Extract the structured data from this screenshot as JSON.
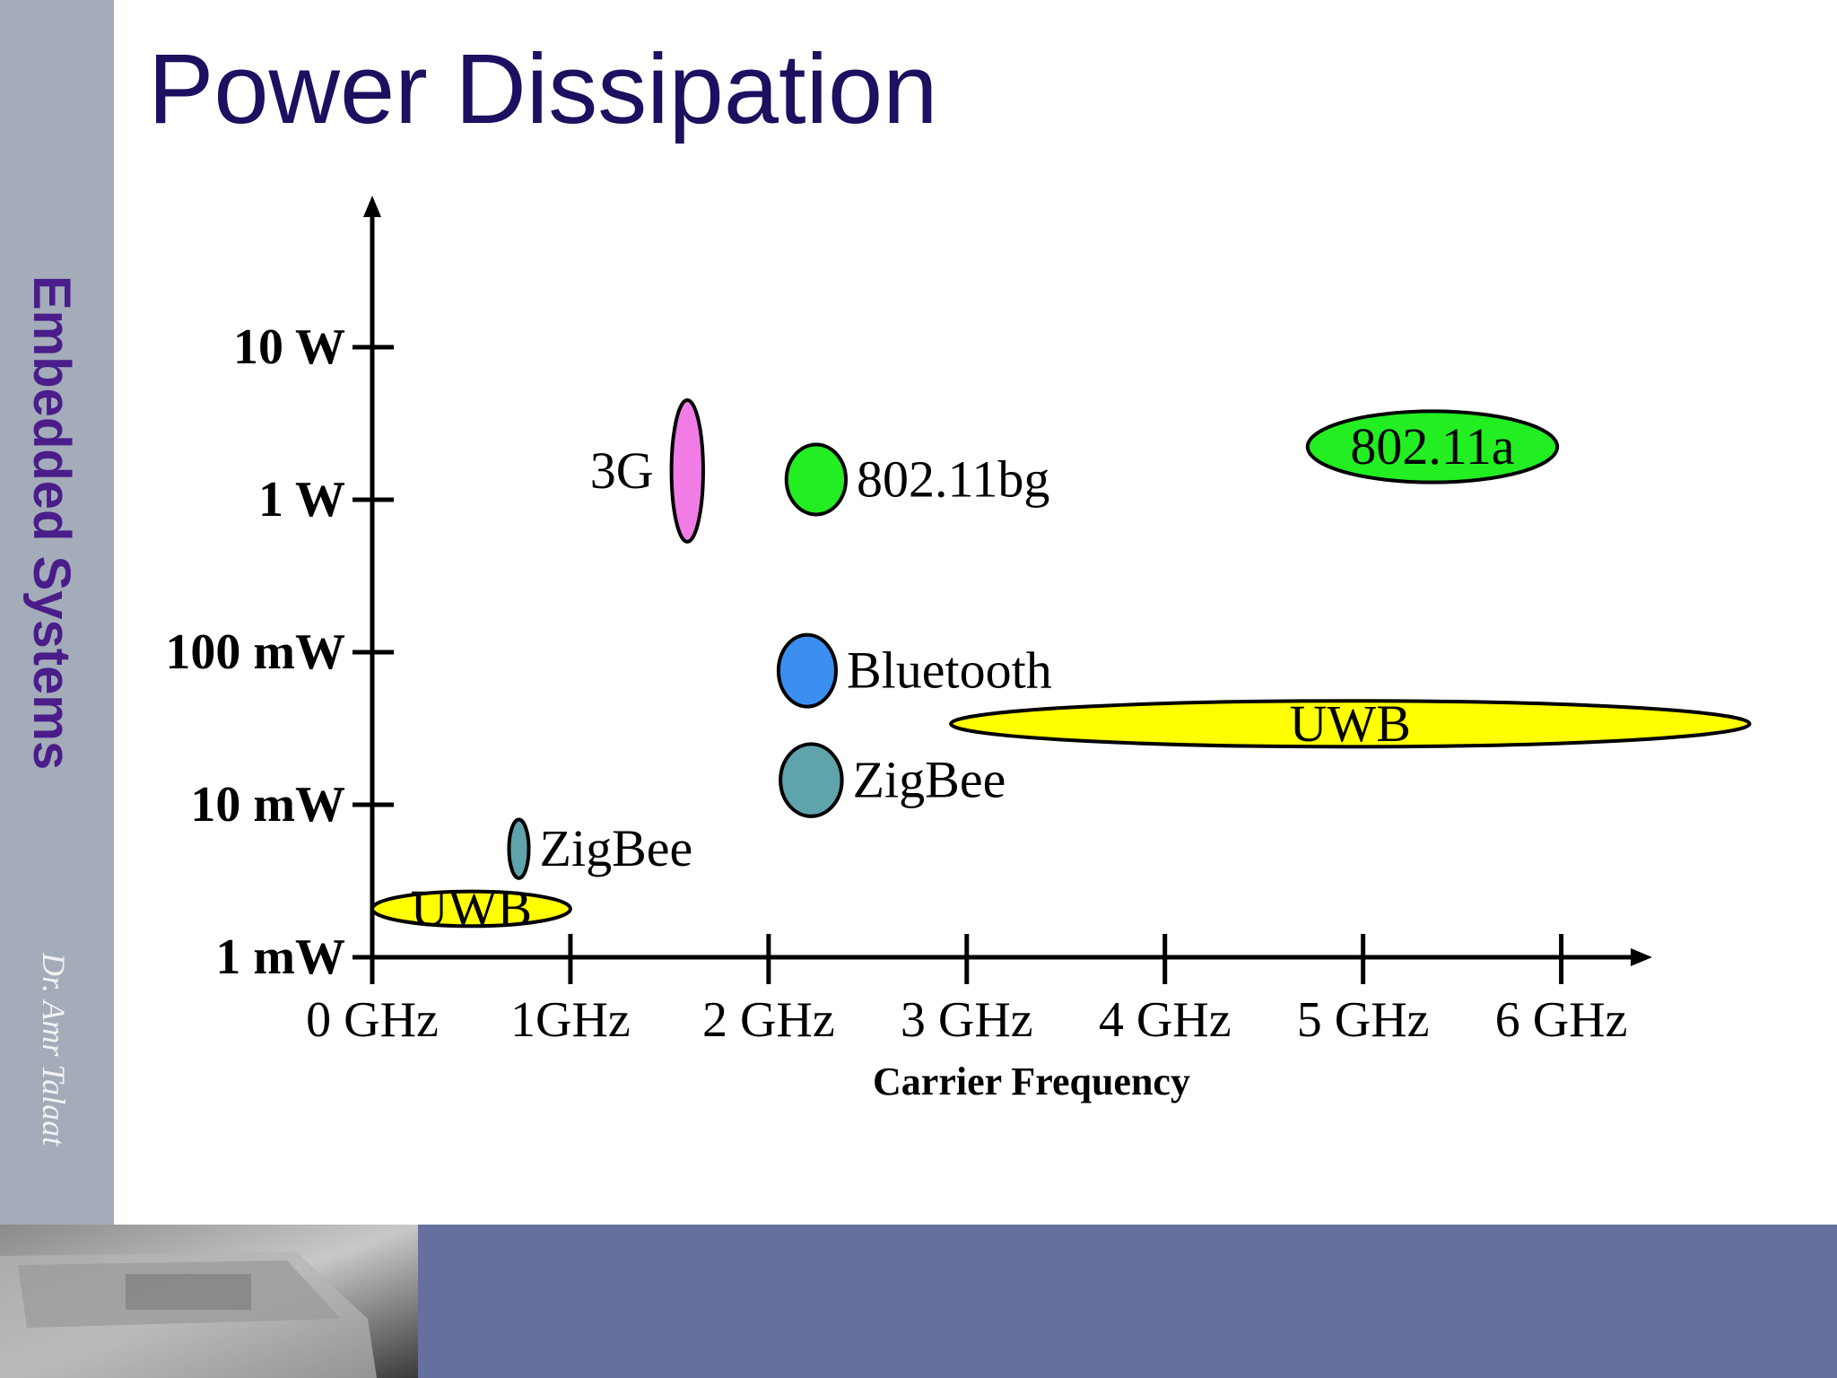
{
  "slide": {
    "title": "Power Dissipation",
    "sidebar": "Embedded Systems",
    "author": "Dr. Amr Talaat"
  },
  "chart_data": {
    "type": "range-ellipse",
    "x_label": "Carrier Frequency",
    "log_y": true,
    "xlim": [
      0,
      6.45
    ],
    "ylim": [
      0.001,
      100
    ],
    "xticks": [
      {
        "value": 0,
        "label": "0 GHz"
      },
      {
        "value": 1,
        "label": "1GHz"
      },
      {
        "value": 2,
        "label": "2 GHz"
      },
      {
        "value": 3,
        "label": "3 GHz"
      },
      {
        "value": 4,
        "label": "4 GHz"
      },
      {
        "value": 5,
        "label": "5 GHz"
      },
      {
        "value": 6,
        "label": "6 GHz"
      }
    ],
    "yticks": [
      {
        "value": 0.001,
        "label": "1 mW"
      },
      {
        "value": 0.01,
        "label": "10 mW"
      },
      {
        "value": 0.1,
        "label": "100 mW"
      },
      {
        "value": 1,
        "label": "1 W"
      },
      {
        "value": 10,
        "label": "10 W"
      }
    ],
    "series": [
      {
        "name": "UWB",
        "color": "#ffff00",
        "label_position": "inside",
        "x": [
          0,
          1
        ],
        "y": [
          0.0016,
          0.0027
        ]
      },
      {
        "name": "ZigBee",
        "color": "#5fa3ab",
        "label_position": "right",
        "x": [
          0.69,
          0.79
        ],
        "y": [
          0.0033,
          0.008
        ]
      },
      {
        "name": "3G",
        "color": "#f27ce6",
        "label_position": "left",
        "x": [
          1.51,
          1.67
        ],
        "y": [
          0.53,
          4.5
        ]
      },
      {
        "name": "802.11bg",
        "color": "#22ee22",
        "label_position": "right",
        "x": [
          2.09,
          2.39
        ],
        "y": [
          0.8,
          2.3
        ]
      },
      {
        "name": "Bluetooth",
        "color": "#3a8ff0",
        "label_position": "right",
        "x": [
          2.05,
          2.34
        ],
        "y": [
          0.044,
          0.13
        ]
      },
      {
        "name": "ZigBee",
        "color": "#5fa3ab",
        "label_position": "right",
        "x": [
          2.06,
          2.37
        ],
        "y": [
          0.0084,
          0.025
        ]
      },
      {
        "name": "UWB",
        "color": "#ffff00",
        "label_position": "inside",
        "x": [
          2.92,
          6.95
        ],
        "y": [
          0.024,
          0.048
        ]
      },
      {
        "name": "802.11a",
        "color": "#22ee22",
        "label_position": "inside",
        "x": [
          4.72,
          5.98
        ],
        "y": [
          1.3,
          3.8
        ]
      }
    ]
  }
}
